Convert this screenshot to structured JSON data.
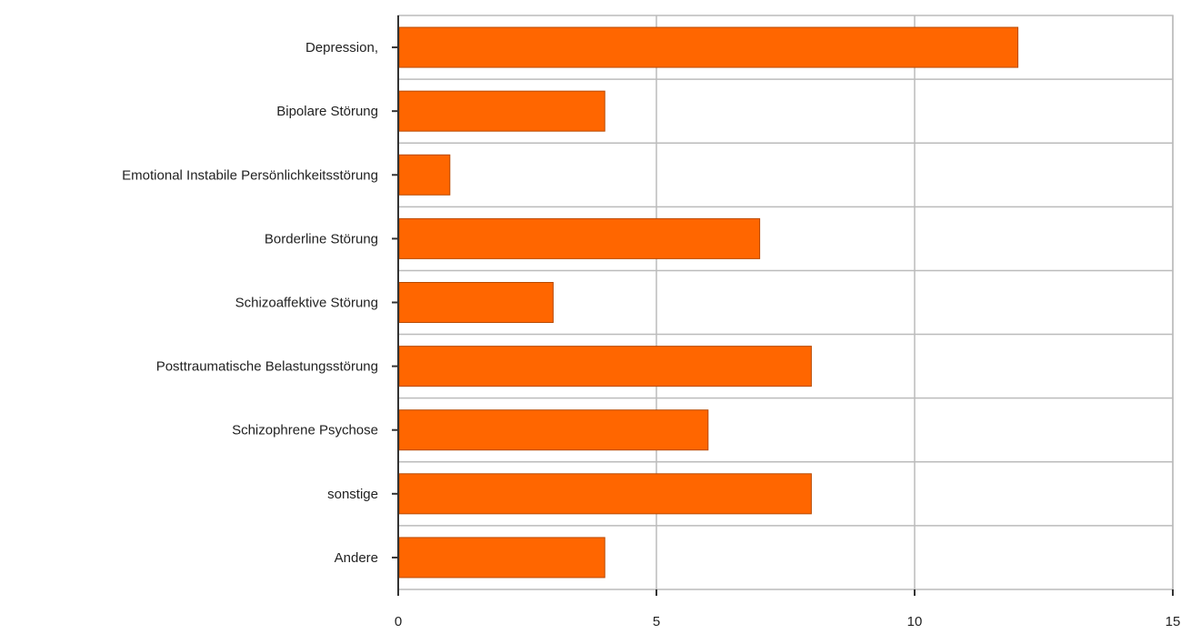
{
  "chart_data": {
    "type": "bar",
    "orientation": "horizontal",
    "categories": [
      "Depression,",
      "Bipolare Störung",
      "Emotional Instabile Persönlichkeitsstörung",
      "Borderline Störung",
      "Schizoaffektive Störung",
      "Posttraumatische Belastungsstörung",
      "Schizophrene Psychose",
      "sonstige",
      "Andere"
    ],
    "values": [
      12,
      4,
      1,
      7,
      3,
      8,
      6,
      8,
      4
    ],
    "xticks": [
      0,
      5,
      10,
      15
    ],
    "xlim": [
      0,
      15
    ],
    "grid": true,
    "bar_color": "#ff6600",
    "bar_edge_color": "#b84a00",
    "title": "",
    "xlabel": "",
    "ylabel": ""
  }
}
